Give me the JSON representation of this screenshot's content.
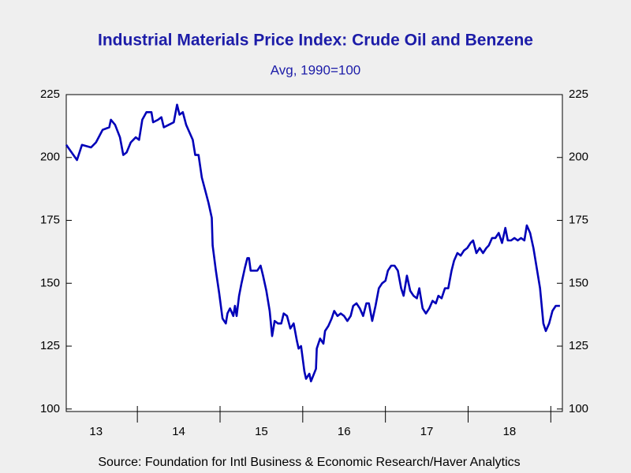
{
  "chart_data": {
    "type": "line",
    "title": "Industrial Materials Price Index: Crude Oil and Benzene",
    "subtitle": "Avg, 1990=100",
    "source": "Source:  Foundation for Intl Business & Economic Research/Haver Analytics",
    "x": [
      2013.14,
      2013.27,
      2013.33,
      2013.44,
      2013.5,
      2013.58,
      2013.66,
      2013.68,
      2013.73,
      2013.79,
      2013.83,
      2013.87,
      2013.92,
      2013.98,
      2014.02,
      2014.06,
      2014.11,
      2014.17,
      2014.19,
      2014.25,
      2014.29,
      2014.32,
      2014.38,
      2014.44,
      2014.48,
      2014.51,
      2014.55,
      2014.59,
      2014.63,
      2014.67,
      2014.7,
      2014.74,
      2014.78,
      2014.82,
      2014.86,
      2014.9,
      2014.91,
      2014.95,
      2014.99,
      2015.03,
      2015.07,
      2015.09,
      2015.12,
      2015.16,
      2015.18,
      2015.2,
      2015.23,
      2015.26,
      2015.3,
      2015.33,
      2015.35,
      2015.37,
      2015.41,
      2015.45,
      2015.49,
      2015.52,
      2015.56,
      2015.6,
      2015.63,
      2015.66,
      2015.7,
      2015.74,
      2015.77,
      2015.81,
      2015.85,
      2015.89,
      2015.93,
      2015.95,
      2015.98,
      2016.02,
      2016.04,
      2016.08,
      2016.1,
      2016.16,
      2016.17,
      2016.21,
      2016.25,
      2016.27,
      2016.31,
      2016.35,
      2016.38,
      2016.42,
      2016.46,
      2016.5,
      2016.54,
      2016.58,
      2016.61,
      2016.65,
      2016.69,
      2016.73,
      2016.77,
      2016.8,
      2016.84,
      2016.88,
      2016.92,
      2016.96,
      2017.0,
      2017.03,
      2017.07,
      2017.11,
      2017.15,
      2017.19,
      2017.22,
      2017.26,
      2017.3,
      2017.34,
      2017.38,
      2017.41,
      2017.45,
      2017.49,
      2017.53,
      2017.57,
      2017.61,
      2017.64,
      2017.68,
      2017.72,
      2017.76,
      2017.8,
      2017.83,
      2017.87,
      2017.91,
      2017.95,
      2017.99,
      2018.03,
      2018.06,
      2018.1,
      2018.14,
      2018.18,
      2018.22,
      2018.25,
      2018.29,
      2018.33,
      2018.37,
      2018.41,
      2018.45,
      2018.48,
      2018.52,
      2018.56,
      2018.6,
      2018.64,
      2018.68,
      2018.71,
      2018.75,
      2018.79,
      2018.83,
      2018.87,
      2018.91,
      2018.94,
      2018.98,
      2019.02,
      2019.06,
      2019.11
    ],
    "series": [
      {
        "color": "#0000b8",
        "values": [
          205,
          199,
          205,
          204,
          206,
          211,
          212,
          215,
          213,
          208,
          201,
          202,
          206,
          208,
          207,
          215,
          218,
          218,
          214,
          215,
          216,
          212,
          213,
          214,
          221,
          217,
          218,
          213,
          210,
          207,
          201,
          201,
          192,
          187,
          182,
          176,
          165,
          155,
          146,
          136,
          134,
          138,
          140,
          137,
          141,
          137,
          145,
          150,
          156,
          160,
          160,
          155,
          155,
          155,
          157,
          153,
          147,
          139,
          129,
          135,
          134,
          134,
          138,
          137,
          132,
          134,
          127,
          124,
          125,
          115,
          112,
          114,
          111,
          116,
          124,
          128,
          126,
          131,
          133,
          136,
          139,
          137,
          138,
          137,
          135,
          137,
          141,
          142,
          140,
          137,
          142,
          142,
          135,
          141,
          148,
          150,
          151,
          155,
          157,
          157,
          155,
          148,
          145,
          153,
          147,
          145,
          144,
          148,
          140,
          138,
          140,
          143,
          142,
          145,
          144,
          148,
          148,
          155,
          159,
          162,
          161,
          163,
          164,
          166,
          167,
          162,
          164,
          162,
          164,
          165,
          168,
          168,
          170,
          166,
          172,
          167,
          167,
          168,
          167,
          168,
          167,
          173,
          170,
          164,
          156,
          148,
          134,
          131,
          134,
          139,
          141,
          141
        ]
      }
    ],
    "xlim": [
      2013.14,
      2019.14
    ],
    "xticks": [
      {
        "value": 2013.5,
        "label": "13"
      },
      {
        "value": 2014.5,
        "label": "14"
      },
      {
        "value": 2015.5,
        "label": "15"
      },
      {
        "value": 2016.5,
        "label": "16"
      },
      {
        "value": 2017.5,
        "label": "17"
      },
      {
        "value": 2018.5,
        "label": "18"
      }
    ],
    "ylim": [
      99,
      225
    ],
    "yticks": [
      100,
      125,
      150,
      175,
      200,
      225
    ],
    "y2lim": [
      99,
      225
    ],
    "y2ticks": [
      100,
      125,
      150,
      175,
      200,
      225
    ]
  }
}
